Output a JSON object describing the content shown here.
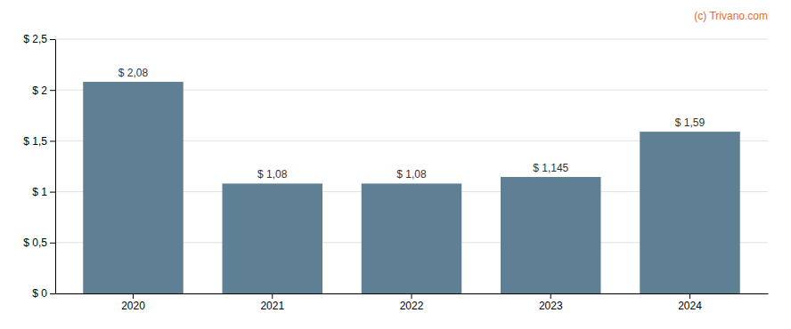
{
  "chart_data": {
    "type": "bar",
    "categories": [
      "2020",
      "2021",
      "2022",
      "2023",
      "2024"
    ],
    "values": [
      2.08,
      1.08,
      1.08,
      1.145,
      1.59
    ],
    "value_labels": [
      "$ 2,08",
      "$ 1,08",
      "$ 1,08",
      "$ 1,145",
      "$ 1,59"
    ],
    "data_labels": true,
    "color": "#5f7f94",
    "ylim": [
      0,
      2.5
    ],
    "yticks": [
      {
        "value": 0,
        "label": "$ 0"
      },
      {
        "value": 0.5,
        "label": "$ 0,5"
      },
      {
        "value": 1,
        "label": "$ 1"
      },
      {
        "value": 1.5,
        "label": "$ 1,5"
      },
      {
        "value": 2,
        "label": "$ 2"
      },
      {
        "value": 2.5,
        "label": "$ 2,5"
      }
    ],
    "grid": true,
    "annotations": [
      {
        "text": "(c) Trivano.com",
        "color": "#e07030"
      }
    ]
  }
}
